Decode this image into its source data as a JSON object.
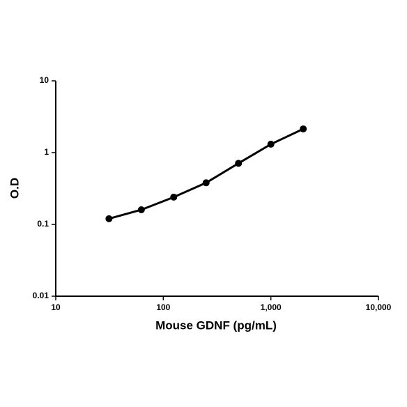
{
  "chart_data": {
    "type": "line",
    "x_label": "Mouse GDNF  (pg/mL)",
    "y_label": "O.D",
    "x": [
      31.25,
      62.5,
      125,
      250,
      500,
      1000,
      2000
    ],
    "series": [
      {
        "name": "O.D",
        "color": "#000000",
        "values": [
          0.12,
          0.16,
          0.24,
          0.38,
          0.71,
          1.31,
          2.14
        ]
      }
    ],
    "xscale": "log",
    "yscale": "log",
    "xlim": [
      10,
      10000
    ],
    "ylim": [
      0.01,
      10
    ],
    "xticks": [
      10,
      100,
      {
        "value": 1000,
        "label": "1,000"
      },
      {
        "value": 10000,
        "label": "10,000"
      }
    ],
    "yticks": [
      0.01,
      0.1,
      1,
      10
    ],
    "grid": false
  }
}
